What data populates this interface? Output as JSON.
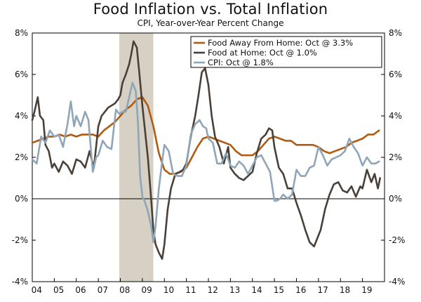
{
  "chart_data": {
    "type": "line",
    "title": "Food Inflation vs. Total Inflation",
    "subtitle": "CPI, Year-over-Year Percent Change",
    "xlabel": "",
    "ylabel": "",
    "xlim": [
      2004,
      2020
    ],
    "ylim": [
      -4,
      8
    ],
    "x_tick_labels": [
      "04",
      "05",
      "06",
      "07",
      "08",
      "09",
      "10",
      "11",
      "12",
      "13",
      "14",
      "15",
      "16",
      "17",
      "18",
      "19"
    ],
    "y_tick_labels_left": [
      "-4%",
      "-2%",
      "0%",
      "2%",
      "4%",
      "6%",
      "8%"
    ],
    "y_tick_labels_right": [
      "-4%",
      "-2%",
      "0%",
      "2%",
      "4%",
      "6%",
      "8%"
    ],
    "y_tick_values": [
      -4,
      -2,
      0,
      2,
      4,
      6,
      8
    ],
    "recession_shading": [
      2007.95,
      2009.5
    ],
    "legend_position": "top-right",
    "series": [
      {
        "name": "Food Away From Home: Oct @ 3.3%",
        "color": "#b05a12",
        "x": [
          2004.0,
          2004.25,
          2004.5,
          2004.75,
          2005.0,
          2005.25,
          2005.5,
          2005.75,
          2006.0,
          2006.25,
          2006.5,
          2006.75,
          2007.0,
          2007.25,
          2007.5,
          2007.75,
          2008.0,
          2008.25,
          2008.5,
          2008.75,
          2009.0,
          2009.25,
          2009.5,
          2009.75,
          2010.0,
          2010.25,
          2010.5,
          2010.75,
          2011.0,
          2011.25,
          2011.5,
          2011.75,
          2012.0,
          2012.25,
          2012.5,
          2012.75,
          2013.0,
          2013.25,
          2013.5,
          2013.75,
          2014.0,
          2014.25,
          2014.5,
          2014.75,
          2015.0,
          2015.25,
          2015.5,
          2015.75,
          2016.0,
          2016.25,
          2016.5,
          2016.75,
          2017.0,
          2017.25,
          2017.5,
          2017.75,
          2018.0,
          2018.25,
          2018.5,
          2018.75,
          2019.0,
          2019.25,
          2019.5,
          2019.75
        ],
        "values": [
          2.7,
          2.8,
          2.9,
          3.0,
          3.0,
          3.1,
          3.0,
          3.1,
          3.0,
          3.1,
          3.1,
          3.1,
          3.0,
          3.3,
          3.5,
          3.7,
          4.0,
          4.3,
          4.5,
          4.8,
          4.9,
          4.5,
          3.5,
          2.2,
          1.4,
          1.2,
          1.2,
          1.3,
          1.5,
          2.0,
          2.5,
          2.9,
          3.0,
          2.9,
          2.8,
          2.7,
          2.6,
          2.3,
          2.1,
          2.1,
          2.1,
          2.3,
          2.6,
          2.9,
          3.0,
          2.9,
          2.8,
          2.8,
          2.6,
          2.6,
          2.6,
          2.6,
          2.5,
          2.3,
          2.2,
          2.3,
          2.4,
          2.5,
          2.7,
          2.8,
          2.9,
          3.1,
          3.1,
          3.3
        ]
      },
      {
        "name": "Food at Home: Oct @ 1.0%",
        "color": "#4a4038",
        "x": [
          2004.0,
          2004.1,
          2004.25,
          2004.35,
          2004.5,
          2004.6,
          2004.75,
          2004.9,
          2005.0,
          2005.2,
          2005.4,
          2005.6,
          2005.8,
          2006.0,
          2006.2,
          2006.4,
          2006.6,
          2006.8,
          2007.0,
          2007.15,
          2007.3,
          2007.45,
          2007.6,
          2007.75,
          2007.9,
          2008.0,
          2008.1,
          2008.25,
          2008.4,
          2008.5,
          2008.6,
          2008.75,
          2008.85,
          2009.0,
          2009.1,
          2009.25,
          2009.4,
          2009.5,
          2009.6,
          2009.75,
          2009.9,
          2010.0,
          2010.15,
          2010.3,
          2010.5,
          2010.7,
          2010.85,
          2011.0,
          2011.2,
          2011.4,
          2011.55,
          2011.7,
          2011.85,
          2012.0,
          2012.15,
          2012.3,
          2012.5,
          2012.7,
          2012.9,
          2013.0,
          2013.2,
          2013.4,
          2013.6,
          2013.8,
          2014.0,
          2014.2,
          2014.4,
          2014.6,
          2014.75,
          2014.9,
          2015.0,
          2015.2,
          2015.4,
          2015.6,
          2015.8,
          2016.0,
          2016.2,
          2016.4,
          2016.6,
          2016.8,
          2016.95,
          2017.1,
          2017.3,
          2017.5,
          2017.7,
          2017.9,
          2018.1,
          2018.3,
          2018.5,
          2018.7,
          2018.9,
          2019.0,
          2019.2,
          2019.4,
          2019.55,
          2019.7,
          2019.8
        ],
        "values": [
          3.8,
          4.2,
          4.9,
          4.0,
          3.8,
          2.6,
          2.3,
          1.5,
          1.7,
          1.3,
          1.8,
          1.6,
          1.2,
          1.9,
          1.8,
          1.5,
          2.3,
          1.5,
          3.5,
          4.0,
          4.2,
          4.4,
          4.5,
          4.6,
          4.8,
          5.0,
          5.6,
          6.0,
          6.5,
          7.0,
          7.6,
          7.3,
          6.2,
          4.5,
          3.5,
          2.0,
          0.0,
          -1.5,
          -2.2,
          -2.6,
          -2.9,
          -2.2,
          -0.5,
          0.5,
          1.2,
          1.3,
          1.4,
          1.7,
          3.0,
          4.0,
          5.0,
          6.1,
          6.3,
          5.5,
          4.0,
          3.0,
          2.5,
          1.7,
          2.5,
          1.5,
          1.2,
          1.0,
          0.9,
          1.1,
          1.3,
          2.2,
          2.9,
          3.1,
          3.4,
          3.3,
          2.5,
          1.5,
          1.2,
          0.5,
          0.5,
          -0.2,
          -0.8,
          -1.5,
          -2.1,
          -2.3,
          -1.9,
          -1.5,
          -0.5,
          0.2,
          0.7,
          0.8,
          0.4,
          0.3,
          0.6,
          0.1,
          0.6,
          0.5,
          1.4,
          0.8,
          1.2,
          0.5,
          1.0
        ]
      },
      {
        "name": "CPI: Oct @ 1.8%",
        "color": "#8fa6b8",
        "x": [
          2004.0,
          2004.2,
          2004.4,
          2004.6,
          2004.8,
          2005.0,
          2005.2,
          2005.4,
          2005.6,
          2005.75,
          2005.9,
          2006.0,
          2006.2,
          2006.4,
          2006.55,
          2006.75,
          2006.9,
          2007.0,
          2007.2,
          2007.4,
          2007.6,
          2007.8,
          2007.95,
          2008.1,
          2008.25,
          2008.4,
          2008.55,
          2008.7,
          2008.8,
          2008.9,
          2009.0,
          2009.1,
          2009.25,
          2009.4,
          2009.5,
          2009.6,
          2009.75,
          2009.9,
          2010.0,
          2010.2,
          2010.4,
          2010.6,
          2010.8,
          2011.0,
          2011.2,
          2011.4,
          2011.6,
          2011.75,
          2011.9,
          2012.0,
          2012.2,
          2012.4,
          2012.6,
          2012.8,
          2013.0,
          2013.2,
          2013.4,
          2013.6,
          2013.8,
          2014.0,
          2014.2,
          2014.4,
          2014.6,
          2014.8,
          2015.0,
          2015.1,
          2015.25,
          2015.4,
          2015.6,
          2015.8,
          2016.0,
          2016.2,
          2016.4,
          2016.6,
          2016.8,
          2017.0,
          2017.2,
          2017.4,
          2017.6,
          2017.8,
          2018.0,
          2018.2,
          2018.4,
          2018.6,
          2018.8,
          2019.0,
          2019.2,
          2019.4,
          2019.6,
          2019.75
        ],
        "values": [
          1.9,
          1.7,
          3.0,
          2.7,
          3.3,
          3.0,
          3.1,
          2.5,
          3.6,
          4.7,
          3.5,
          4.0,
          3.5,
          4.2,
          3.8,
          1.3,
          2.0,
          2.1,
          2.8,
          2.5,
          2.4,
          4.3,
          4.1,
          4.2,
          4.2,
          4.9,
          5.6,
          5.2,
          3.7,
          1.1,
          0.1,
          -0.1,
          -0.6,
          -1.3,
          -2.1,
          -1.3,
          0.5,
          1.8,
          2.6,
          2.3,
          1.2,
          1.1,
          1.1,
          1.6,
          3.1,
          3.6,
          3.8,
          3.5,
          3.4,
          2.9,
          2.7,
          1.7,
          1.7,
          2.2,
          1.6,
          1.5,
          1.8,
          1.6,
          1.2,
          1.6,
          2.0,
          2.1,
          1.7,
          1.3,
          -0.1,
          -0.1,
          0.0,
          0.2,
          0.0,
          0.2,
          1.4,
          1.1,
          1.1,
          1.5,
          1.6,
          2.5,
          2.1,
          1.6,
          1.9,
          2.0,
          2.1,
          2.3,
          2.9,
          2.5,
          2.2,
          1.6,
          2.0,
          1.7,
          1.7,
          1.8
        ]
      }
    ]
  }
}
